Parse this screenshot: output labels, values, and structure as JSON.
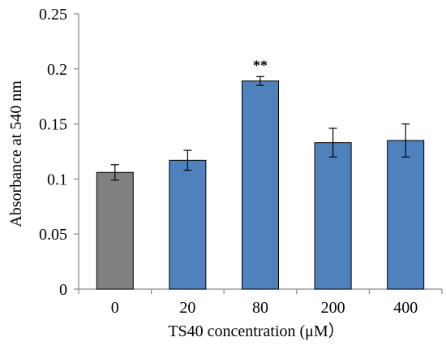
{
  "chart_data": {
    "type": "bar",
    "title": "",
    "xlabel": "TS40 concentration (μM）",
    "ylabel": "Absorbance at 540 nm",
    "categories": [
      "0",
      "20",
      "80",
      "200",
      "400"
    ],
    "values": [
      0.106,
      0.117,
      0.189,
      0.133,
      0.135
    ],
    "errors": [
      0.007,
      0.009,
      0.004,
      0.013,
      0.015
    ],
    "annotations": [
      {
        "category": "80",
        "text": "**"
      }
    ],
    "colors": [
      "#808080",
      "#4f81bd",
      "#4f81bd",
      "#4f81bd",
      "#4f81bd"
    ],
    "ylim": [
      0,
      0.25
    ],
    "yticks": [
      "0",
      "0.05",
      "0.1",
      "0.15",
      "0.2",
      "0.25"
    ],
    "ytick_values": [
      0,
      0.05,
      0.1,
      0.15,
      0.2,
      0.25
    ],
    "grid": false,
    "legend": "none"
  }
}
